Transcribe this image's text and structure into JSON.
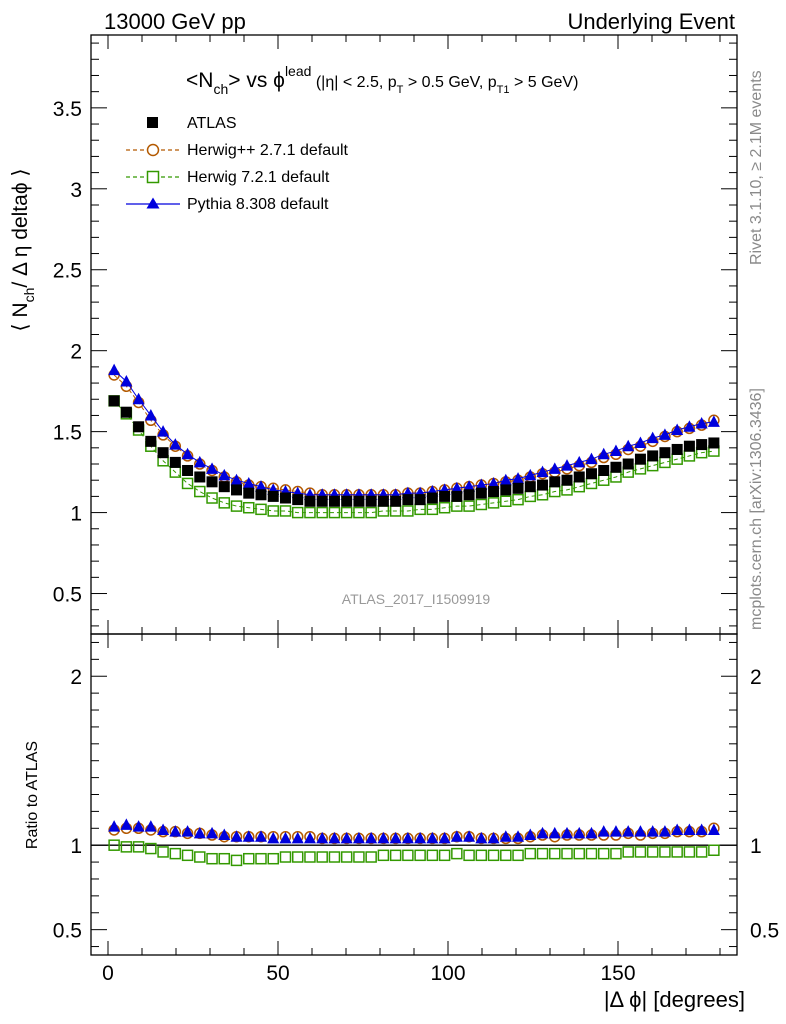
{
  "header": {
    "left": "13000 GeV pp",
    "right": "Underlying Event"
  },
  "plot_title": {
    "main": "<N",
    "main_sub": "ch",
    "main_rest": "> vs ",
    "phi": "ϕ",
    "phi_sup": "lead",
    "cuts_1": " (|η| < 2.5, p",
    "cuts_sub1": "T",
    "cuts_2": " > 0.5 GeV, p",
    "cuts_sub2": "T1",
    "cuts_3": " > 5 GeV)"
  },
  "ylabel_main": {
    "pre": "⟨ N",
    "sub": "ch",
    "post": "/ Δ η deltaϕ ⟩"
  },
  "ylabel_ratio": "Ratio to ATLAS",
  "xlabel": "|Δ ϕ| [degrees]",
  "analysis_tag": "ATLAS_2017_I1509919",
  "side_top": "Rivet 3.1.10, ≥ 2.1M events",
  "side_bottom": "mcplots.cern.ch [arXiv:1306.3436]",
  "colors": {
    "atlas": "#000000",
    "herwigpp": "#b35900",
    "herwig7": "#339900",
    "pythia": "#0000dd"
  },
  "chart_data": [
    {
      "type": "scatter",
      "title": "<Nch> vs ϕlead (|η| < 2.5, pT > 0.5 GeV, pT1 > 5 GeV)",
      "xlabel": "",
      "ylabel": "⟨ Nch / Δ η deltaϕ ⟩",
      "xlim": [
        -5,
        185
      ],
      "ylim": [
        0.25,
        3.95
      ],
      "yticks": [
        "0.5",
        "1",
        "1.5",
        "2",
        "2.5",
        "3",
        "3.5"
      ],
      "xticks": [
        "0",
        "50",
        "100",
        "150"
      ],
      "legend_position": "top-left",
      "x": [
        1.8,
        5.4,
        9.0,
        12.6,
        16.2,
        19.8,
        23.4,
        27.0,
        30.6,
        34.2,
        37.8,
        41.4,
        45.0,
        48.6,
        52.2,
        55.8,
        59.4,
        63.0,
        66.6,
        70.2,
        73.8,
        77.4,
        81.0,
        84.6,
        88.2,
        91.8,
        95.4,
        99.0,
        102.6,
        106.2,
        109.8,
        113.4,
        117.0,
        120.6,
        124.2,
        127.8,
        131.4,
        135.0,
        138.6,
        142.2,
        145.8,
        149.4,
        153.0,
        156.6,
        160.2,
        163.8,
        167.4,
        171.0,
        174.6,
        178.2
      ],
      "series": [
        {
          "name": "ATLAS",
          "marker": "filled-square",
          "values": [
            1.69,
            1.62,
            1.53,
            1.44,
            1.37,
            1.31,
            1.26,
            1.22,
            1.19,
            1.16,
            1.14,
            1.12,
            1.11,
            1.1,
            1.09,
            1.08,
            1.07,
            1.07,
            1.07,
            1.07,
            1.07,
            1.07,
            1.07,
            1.07,
            1.08,
            1.08,
            1.09,
            1.1,
            1.1,
            1.11,
            1.12,
            1.13,
            1.14,
            1.15,
            1.16,
            1.17,
            1.19,
            1.2,
            1.22,
            1.24,
            1.26,
            1.28,
            1.3,
            1.33,
            1.35,
            1.37,
            1.39,
            1.41,
            1.42,
            1.43
          ]
        },
        {
          "name": "Herwig++ 2.7.1 default",
          "marker": "open-circle",
          "line": "dashed",
          "values": [
            1.85,
            1.78,
            1.68,
            1.57,
            1.48,
            1.41,
            1.35,
            1.3,
            1.26,
            1.22,
            1.19,
            1.17,
            1.16,
            1.15,
            1.14,
            1.13,
            1.12,
            1.11,
            1.11,
            1.11,
            1.11,
            1.11,
            1.11,
            1.11,
            1.12,
            1.12,
            1.13,
            1.14,
            1.15,
            1.16,
            1.17,
            1.18,
            1.19,
            1.2,
            1.22,
            1.24,
            1.25,
            1.27,
            1.29,
            1.31,
            1.34,
            1.36,
            1.39,
            1.41,
            1.44,
            1.47,
            1.5,
            1.52,
            1.54,
            1.57
          ]
        },
        {
          "name": "Herwig 7.2.1 default",
          "marker": "open-square",
          "line": "dashed",
          "values": [
            1.69,
            1.61,
            1.51,
            1.41,
            1.32,
            1.25,
            1.18,
            1.13,
            1.09,
            1.06,
            1.04,
            1.03,
            1.02,
            1.01,
            1.01,
            1.0,
            1.0,
            1.0,
            1.0,
            1.0,
            1.0,
            1.0,
            1.01,
            1.01,
            1.01,
            1.02,
            1.02,
            1.03,
            1.04,
            1.04,
            1.05,
            1.06,
            1.07,
            1.08,
            1.1,
            1.11,
            1.13,
            1.14,
            1.16,
            1.18,
            1.2,
            1.22,
            1.25,
            1.27,
            1.29,
            1.31,
            1.33,
            1.35,
            1.37,
            1.38
          ]
        },
        {
          "name": "Pythia 8.308 default",
          "marker": "filled-triangle",
          "line": "solid",
          "values": [
            1.88,
            1.81,
            1.7,
            1.6,
            1.5,
            1.42,
            1.36,
            1.31,
            1.27,
            1.23,
            1.2,
            1.18,
            1.16,
            1.14,
            1.13,
            1.12,
            1.11,
            1.11,
            1.11,
            1.11,
            1.11,
            1.11,
            1.11,
            1.11,
            1.12,
            1.12,
            1.13,
            1.14,
            1.15,
            1.16,
            1.17,
            1.18,
            1.2,
            1.21,
            1.23,
            1.25,
            1.27,
            1.29,
            1.31,
            1.33,
            1.36,
            1.38,
            1.41,
            1.43,
            1.46,
            1.48,
            1.51,
            1.53,
            1.55,
            1.56
          ]
        }
      ]
    },
    {
      "type": "scatter",
      "title": "",
      "xlabel": "|Δ ϕ| [degrees]",
      "ylabel": "Ratio to ATLAS",
      "xlim": [
        -5,
        185
      ],
      "ylim": [
        0.35,
        2.25
      ],
      "yticks": [
        "0.5",
        "1",
        "2"
      ],
      "xticks": [
        "0",
        "50",
        "100",
        "150"
      ],
      "x": [
        1.8,
        5.4,
        9.0,
        12.6,
        16.2,
        19.8,
        23.4,
        27.0,
        30.6,
        34.2,
        37.8,
        41.4,
        45.0,
        48.6,
        52.2,
        55.8,
        59.4,
        63.0,
        66.6,
        70.2,
        73.8,
        77.4,
        81.0,
        84.6,
        88.2,
        91.8,
        95.4,
        99.0,
        102.6,
        106.2,
        109.8,
        113.4,
        117.0,
        120.6,
        124.2,
        127.8,
        131.4,
        135.0,
        138.6,
        142.2,
        145.8,
        149.4,
        153.0,
        156.6,
        160.2,
        163.8,
        167.4,
        171.0,
        174.6,
        178.2
      ],
      "series": [
        {
          "name": "Herwig++ 2.7.1 default",
          "marker": "open-circle",
          "values": [
            1.09,
            1.1,
            1.1,
            1.09,
            1.08,
            1.08,
            1.07,
            1.07,
            1.06,
            1.05,
            1.05,
            1.05,
            1.05,
            1.05,
            1.05,
            1.05,
            1.05,
            1.04,
            1.04,
            1.04,
            1.04,
            1.04,
            1.04,
            1.04,
            1.04,
            1.04,
            1.04,
            1.04,
            1.05,
            1.05,
            1.04,
            1.04,
            1.04,
            1.04,
            1.05,
            1.06,
            1.05,
            1.06,
            1.06,
            1.06,
            1.06,
            1.06,
            1.07,
            1.06,
            1.07,
            1.07,
            1.08,
            1.08,
            1.08,
            1.1
          ]
        },
        {
          "name": "Herwig 7.2.1 default",
          "marker": "open-square",
          "values": [
            1.0,
            0.99,
            0.99,
            0.98,
            0.96,
            0.95,
            0.94,
            0.93,
            0.92,
            0.92,
            0.91,
            0.92,
            0.92,
            0.92,
            0.93,
            0.93,
            0.93,
            0.93,
            0.93,
            0.93,
            0.93,
            0.93,
            0.94,
            0.94,
            0.94,
            0.94,
            0.94,
            0.94,
            0.95,
            0.94,
            0.94,
            0.94,
            0.94,
            0.94,
            0.95,
            0.95,
            0.95,
            0.95,
            0.95,
            0.95,
            0.95,
            0.95,
            0.96,
            0.96,
            0.96,
            0.96,
            0.96,
            0.96,
            0.96,
            0.97
          ]
        },
        {
          "name": "Pythia 8.308 default",
          "marker": "filled-triangle",
          "values": [
            1.11,
            1.12,
            1.11,
            1.11,
            1.09,
            1.08,
            1.08,
            1.07,
            1.07,
            1.06,
            1.05,
            1.05,
            1.05,
            1.04,
            1.04,
            1.04,
            1.04,
            1.04,
            1.04,
            1.04,
            1.04,
            1.04,
            1.04,
            1.04,
            1.04,
            1.04,
            1.04,
            1.04,
            1.05,
            1.05,
            1.04,
            1.04,
            1.05,
            1.05,
            1.06,
            1.07,
            1.07,
            1.07,
            1.07,
            1.07,
            1.08,
            1.08,
            1.08,
            1.08,
            1.08,
            1.08,
            1.09,
            1.09,
            1.09,
            1.09
          ]
        }
      ]
    }
  ]
}
